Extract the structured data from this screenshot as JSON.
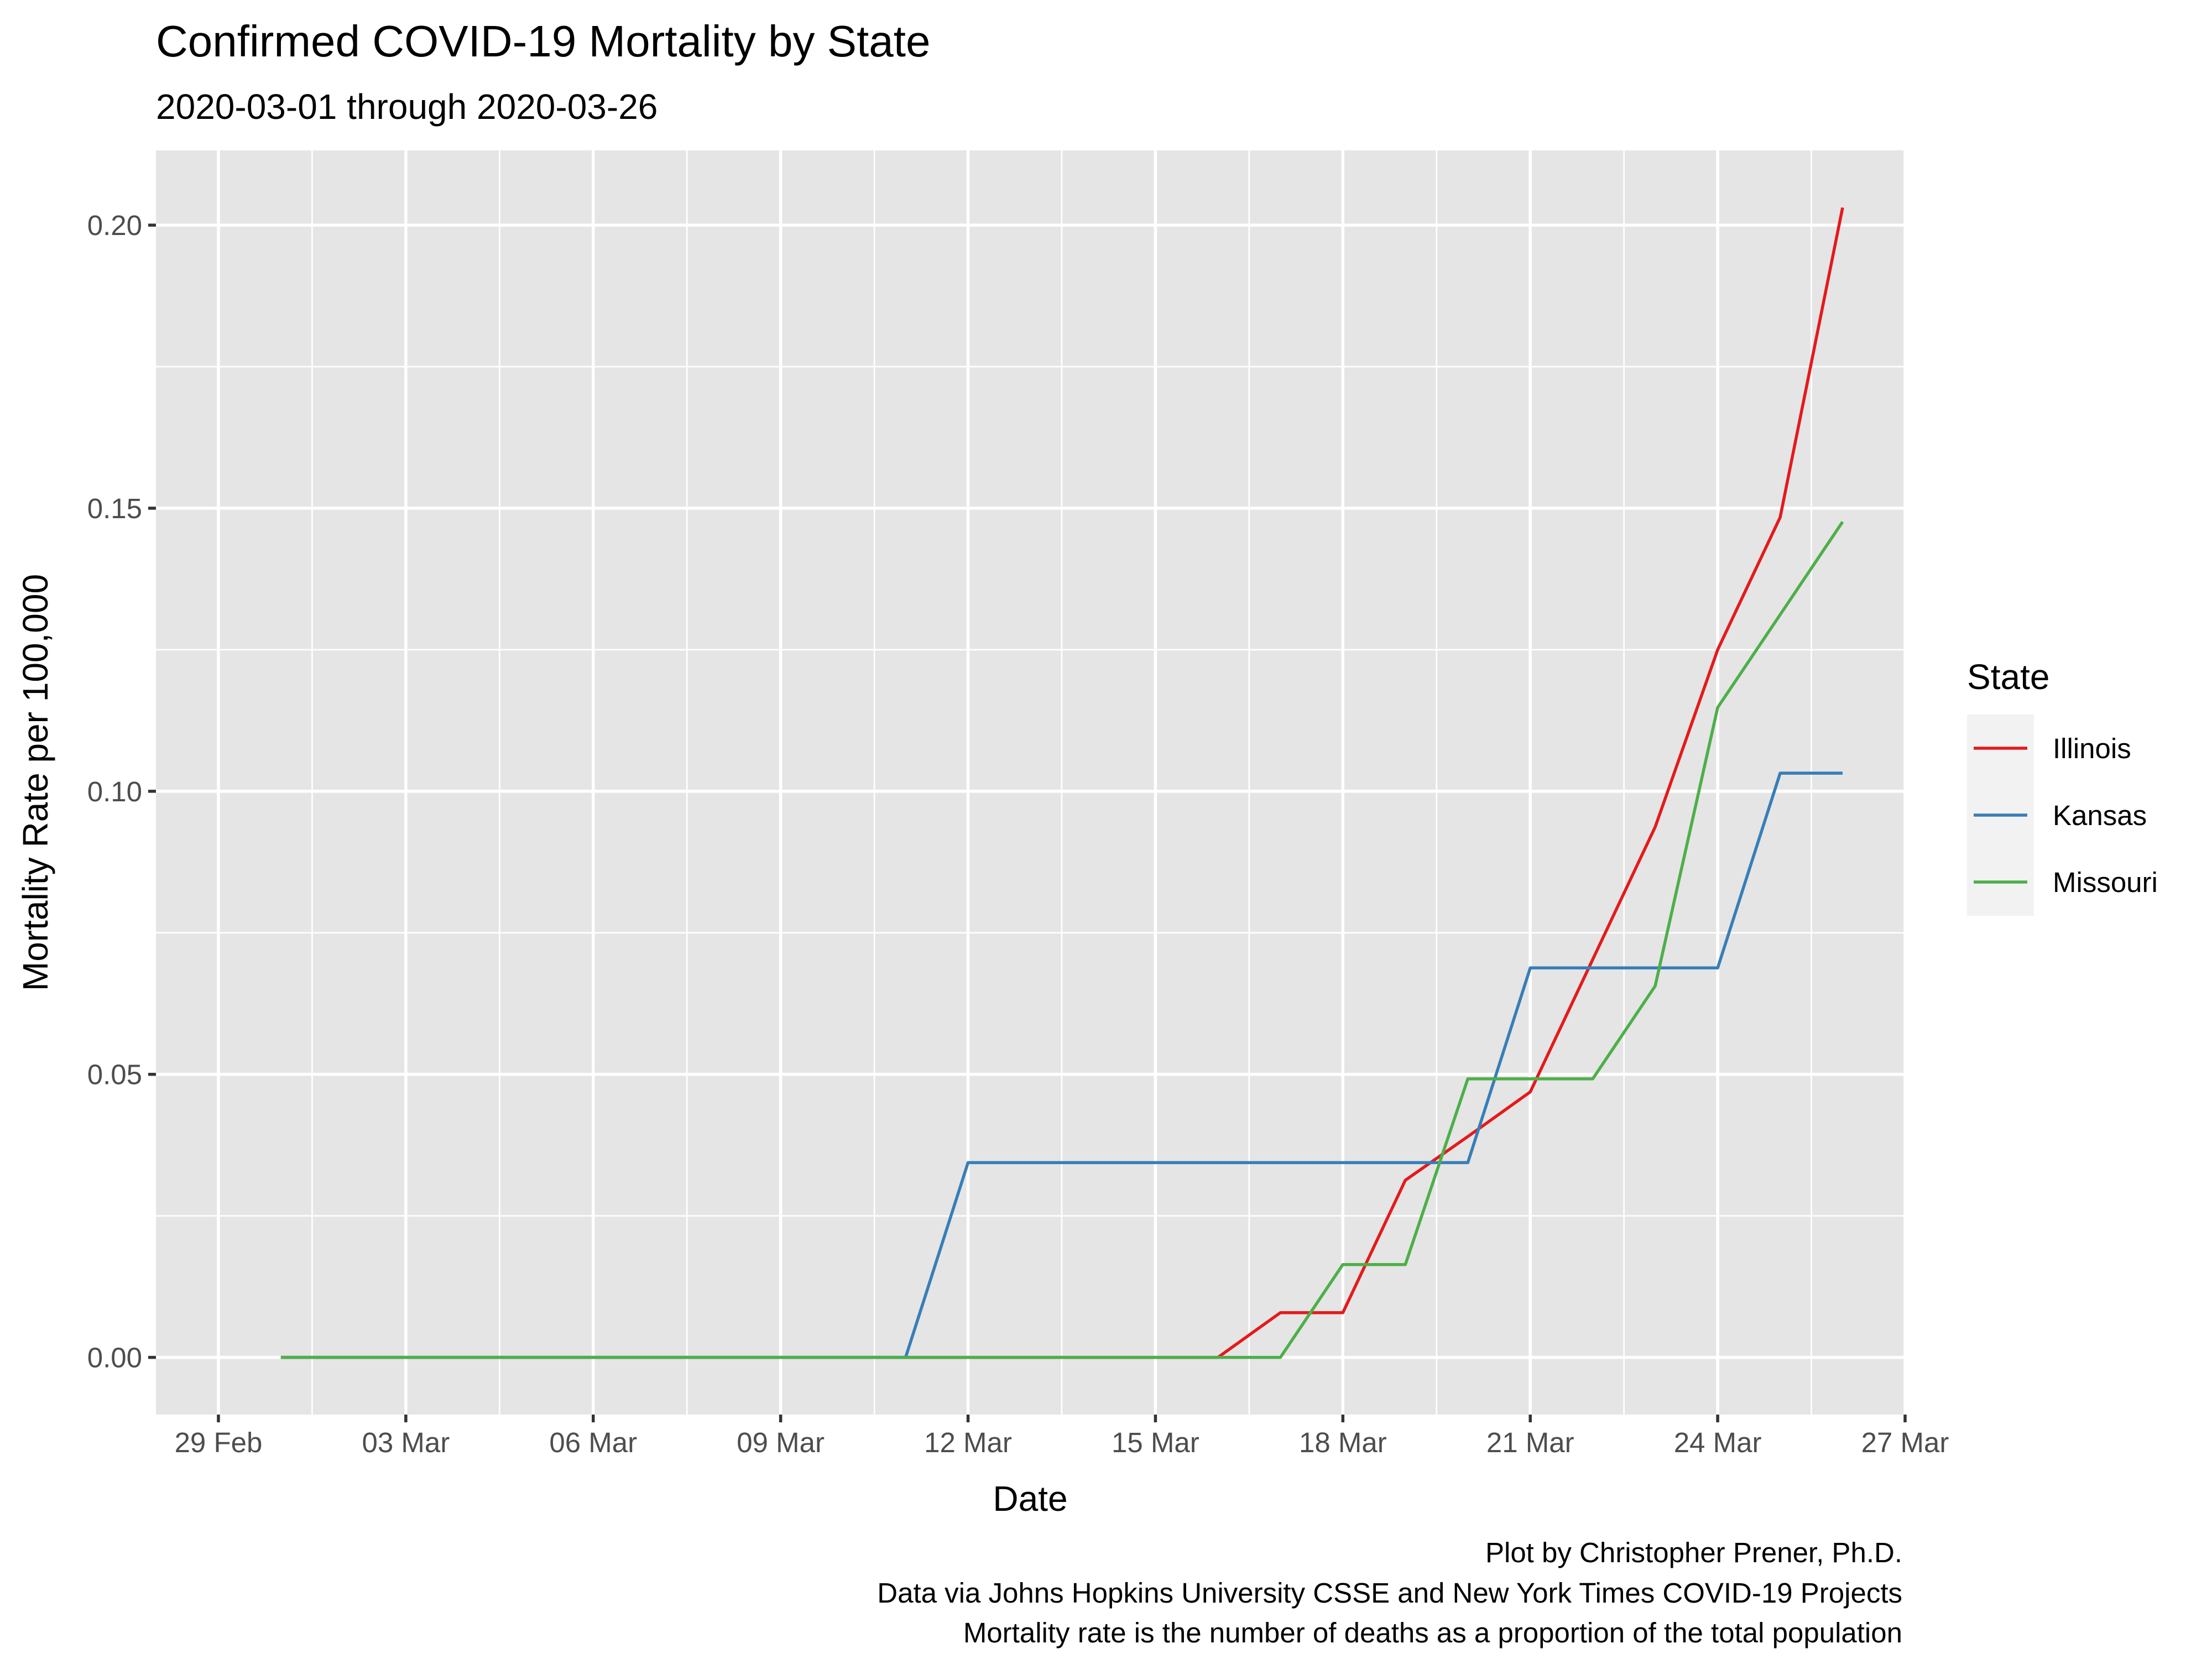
{
  "chart_data": {
    "type": "line",
    "title": "Confirmed COVID-19 Mortality by State",
    "subtitle": "2020-03-01 through 2020-03-26",
    "xlabel": "Date",
    "ylabel": "Mortality Rate per 100,000",
    "x": [
      "2020-03-01",
      "2020-03-02",
      "2020-03-03",
      "2020-03-04",
      "2020-03-05",
      "2020-03-06",
      "2020-03-07",
      "2020-03-08",
      "2020-03-09",
      "2020-03-10",
      "2020-03-11",
      "2020-03-12",
      "2020-03-13",
      "2020-03-14",
      "2020-03-15",
      "2020-03-16",
      "2020-03-17",
      "2020-03-18",
      "2020-03-19",
      "2020-03-20",
      "2020-03-21",
      "2020-03-22",
      "2020-03-23",
      "2020-03-24",
      "2020-03-25",
      "2020-03-26"
    ],
    "series": [
      {
        "name": "Illinois",
        "color": "#E41A1C",
        "values": [
          0,
          0,
          0,
          0,
          0,
          0,
          0,
          0,
          0,
          0,
          0,
          0,
          0,
          0,
          0,
          0,
          0.0079,
          0.0079,
          0.0313,
          0.039,
          0.0469,
          0.0703,
          0.0937,
          0.125,
          0.1484,
          0.2031
        ]
      },
      {
        "name": "Kansas",
        "color": "#377EB8",
        "values": [
          0,
          0,
          0,
          0,
          0,
          0,
          0,
          0,
          0,
          0,
          0,
          0.0344,
          0.0344,
          0.0344,
          0.0344,
          0.0344,
          0.0344,
          0.0344,
          0.0344,
          0.0344,
          0.0688,
          0.0688,
          0.0688,
          0.0688,
          0.1032,
          0.1032
        ]
      },
      {
        "name": "Missouri",
        "color": "#4DAF4A",
        "values": [
          0,
          0,
          0,
          0,
          0,
          0,
          0,
          0,
          0,
          0,
          0,
          0,
          0,
          0,
          0,
          0,
          0,
          0.0164,
          0.0164,
          0.0492,
          0.0492,
          0.0492,
          0.0656,
          0.1148,
          0.1312,
          0.1476
        ]
      }
    ],
    "xlim": [
      "2020-02-28",
      "2020-03-27"
    ],
    "ylim": [
      -0.0101,
      0.2132
    ],
    "x_ticks": [
      {
        "date": "2020-02-29",
        "label": "29 Feb"
      },
      {
        "date": "2020-03-03",
        "label": "03 Mar"
      },
      {
        "date": "2020-03-06",
        "label": "06 Mar"
      },
      {
        "date": "2020-03-09",
        "label": "09 Mar"
      },
      {
        "date": "2020-03-12",
        "label": "12 Mar"
      },
      {
        "date": "2020-03-15",
        "label": "15 Mar"
      },
      {
        "date": "2020-03-18",
        "label": "18 Mar"
      },
      {
        "date": "2020-03-21",
        "label": "21 Mar"
      },
      {
        "date": "2020-03-24",
        "label": "24 Mar"
      },
      {
        "date": "2020-03-27",
        "label": "27 Mar"
      }
    ],
    "y_ticks": [
      {
        "value": 0,
        "label": "0.00"
      },
      {
        "value": 0.05,
        "label": "0.05"
      },
      {
        "value": 0.1,
        "label": "0.10"
      },
      {
        "value": 0.15,
        "label": "0.15"
      },
      {
        "value": 0.2,
        "label": "0.20"
      }
    ],
    "grid": true,
    "legend": {
      "title": "State",
      "placement": "right"
    },
    "caption": [
      "Plot by Christopher Prener, Ph.D.",
      "Data via Johns Hopkins University CSSE and New York Times COVID-19 Projects",
      "Mortality rate is the number of deaths as a proportion of the total population"
    ],
    "panel_background": "#E5E5E5",
    "grid_color": "#FFFFFF"
  }
}
